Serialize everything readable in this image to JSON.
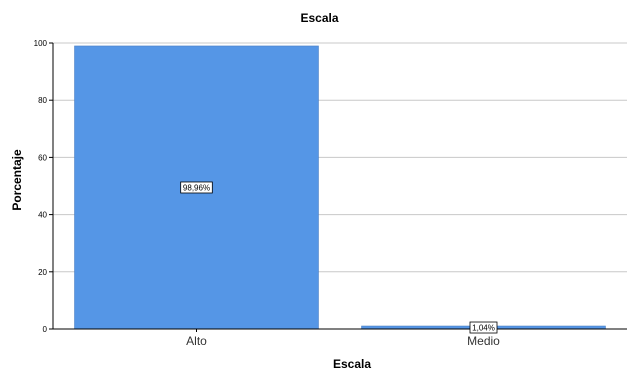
{
  "chart_data": {
    "type": "bar",
    "title": "Escala",
    "xlabel": "Escala",
    "ylabel": "Porcentaje",
    "categories": [
      "Alto",
      "Medio"
    ],
    "values": [
      98.96,
      1.04
    ],
    "data_labels": [
      "98,96%",
      "1,04%"
    ],
    "ylim": [
      0,
      100
    ],
    "yticks": [
      0,
      20,
      40,
      60,
      80,
      100
    ],
    "ytick_labels": [
      "0",
      "20",
      "40",
      "60",
      "80",
      "100"
    ],
    "grid": true,
    "legend": "none",
    "bar_color": "#5596e6",
    "bar_edge_color": "#4a7fc4",
    "grid_color": "#c8c8c8",
    "axis_color": "#000000"
  }
}
